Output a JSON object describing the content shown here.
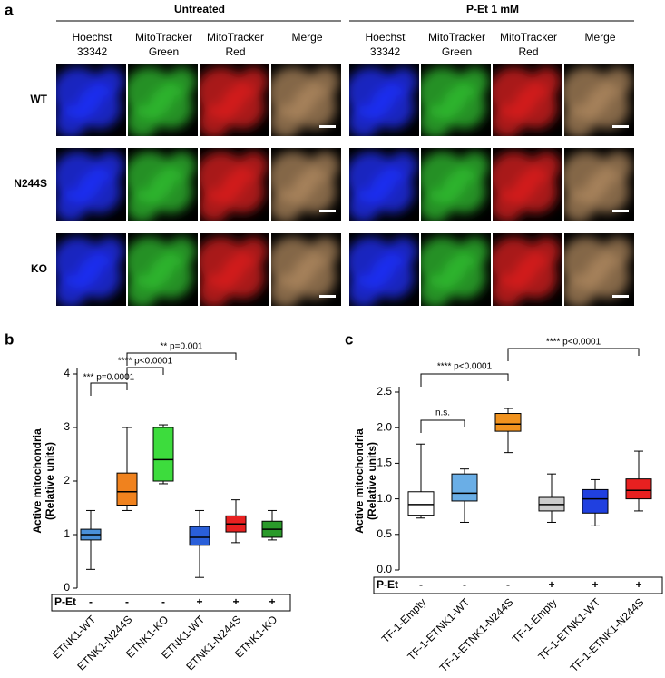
{
  "panel_a": {
    "label": "a",
    "groups": [
      "Untreated",
      "P-Et 1 mM"
    ],
    "columns": [
      [
        "Hoechst",
        "33342"
      ],
      [
        "MitoTracker",
        "Green"
      ],
      [
        "MitoTracker",
        "Red"
      ],
      [
        "Merge"
      ]
    ],
    "rows": [
      "WT",
      "N244S",
      "KO"
    ]
  },
  "chart_data": [
    {
      "type": "box",
      "label": "b",
      "ylabel": [
        "Active mitochondria",
        "(Relative units)"
      ],
      "categories": [
        "ETNK1-WT",
        "ETNK1-N244S",
        "ETNK1-KO",
        "ETNK1-WT",
        "ETNK1-N244S",
        "ETNK1-KO"
      ],
      "row_label": "P-Et",
      "treatment": [
        "-",
        "-",
        "-",
        "+",
        "+",
        "+"
      ],
      "colors": [
        "#4a90d9",
        "#f0821e",
        "#3ddc3d",
        "#2a5fd9",
        "#e82020",
        "#2a9a2a"
      ],
      "boxes": [
        {
          "min": 0.35,
          "q1": 0.9,
          "median": 1.0,
          "q3": 1.1,
          "max": 1.45
        },
        {
          "min": 1.45,
          "q1": 1.55,
          "median": 1.8,
          "q3": 2.15,
          "max": 3.0
        },
        {
          "min": 1.95,
          "q1": 2.0,
          "median": 2.4,
          "q3": 3.0,
          "max": 3.05
        },
        {
          "min": 0.2,
          "q1": 0.8,
          "median": 0.95,
          "q3": 1.15,
          "max": 1.45
        },
        {
          "min": 0.85,
          "q1": 1.05,
          "median": 1.2,
          "q3": 1.35,
          "max": 1.65
        },
        {
          "min": 0.9,
          "q1": 0.95,
          "median": 1.1,
          "q3": 1.25,
          "max": 1.45
        }
      ],
      "ylim": [
        0,
        4
      ],
      "yticks": [
        0,
        1,
        2,
        3,
        4
      ],
      "annotations": [
        "*** p=0.0001",
        "**** p<0.0001",
        "** p=0.001"
      ]
    },
    {
      "type": "box",
      "label": "c",
      "ylabel": [
        "Active mitochondria",
        "(Relative units)"
      ],
      "categories": [
        "TF-1-Empty",
        "TF-1-ETNK1-WT",
        "TF-1-ETNK1-N244S",
        "TF-1-Empty",
        "TF-1-ETNK1-WT",
        "TF-1-ETNK1-N244S"
      ],
      "row_label": "P-Et",
      "treatment": [
        "-",
        "-",
        "-",
        "+",
        "+",
        "+"
      ],
      "colors": [
        "#ffffff",
        "#6aaee6",
        "#f0921e",
        "#cccccc",
        "#2040e0",
        "#e82020"
      ],
      "boxes": [
        {
          "min": 0.73,
          "q1": 0.77,
          "median": 0.92,
          "q3": 1.1,
          "max": 1.77
        },
        {
          "min": 0.67,
          "q1": 0.97,
          "median": 1.08,
          "q3": 1.35,
          "max": 1.42
        },
        {
          "min": 1.65,
          "q1": 1.95,
          "median": 2.05,
          "q3": 2.2,
          "max": 2.27
        },
        {
          "min": 0.67,
          "q1": 0.83,
          "median": 0.92,
          "q3": 1.02,
          "max": 1.35
        },
        {
          "min": 0.62,
          "q1": 0.8,
          "median": 1.0,
          "q3": 1.13,
          "max": 1.27
        },
        {
          "min": 0.83,
          "q1": 1.0,
          "median": 1.12,
          "q3": 1.28,
          "max": 1.67
        }
      ],
      "ylim": [
        0,
        2.5
      ],
      "yticks": [
        {
          "value": 0,
          "label": "0.0"
        },
        0.5,
        {
          "value": 1,
          "label": "1.0"
        },
        1.5,
        {
          "value": 2,
          "label": "2.0"
        },
        2.5
      ],
      "annotations": [
        "n.s.",
        "**** p<0.0001",
        "**** p<0.0001"
      ]
    }
  ]
}
